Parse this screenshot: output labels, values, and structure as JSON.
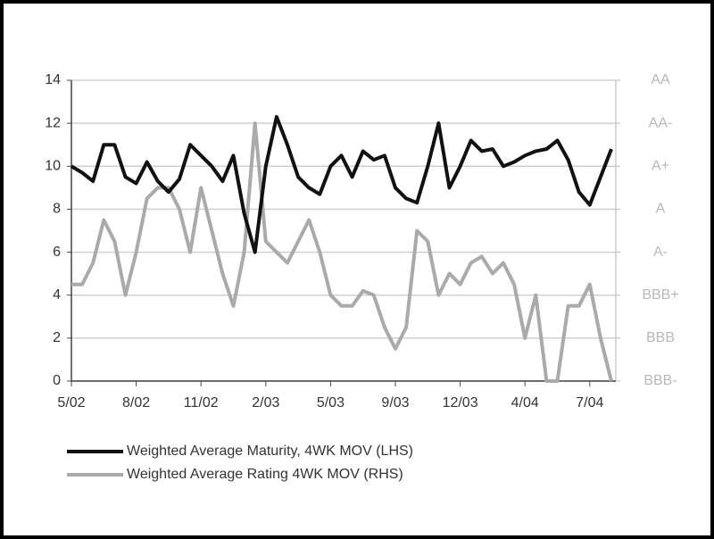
{
  "chart_data": {
    "type": "line",
    "categories": [
      "5/02",
      null,
      null,
      null,
      null,
      null,
      "8/02",
      null,
      null,
      null,
      null,
      null,
      "11/02",
      null,
      null,
      null,
      null,
      null,
      "2/03",
      null,
      null,
      null,
      null,
      null,
      "5/03",
      null,
      null,
      null,
      null,
      null,
      "9/03",
      null,
      null,
      null,
      null,
      null,
      "12/03",
      null,
      null,
      null,
      null,
      null,
      "4/04",
      null,
      null,
      null,
      null,
      null,
      "7/04",
      null,
      null
    ],
    "ylim": [
      0,
      14
    ],
    "yticks": [
      0,
      2,
      4,
      6,
      8,
      10,
      12,
      14
    ],
    "y2lim": [
      0,
      7
    ],
    "y2ticks": [
      {
        "value": 0,
        "label": "BBB-"
      },
      {
        "value": 1,
        "label": "BBB"
      },
      {
        "value": 2,
        "label": "BBB+"
      },
      {
        "value": 3,
        "label": "A-"
      },
      {
        "value": 4,
        "label": "A"
      },
      {
        "value": 5,
        "label": "A+"
      },
      {
        "value": 6,
        "label": "AA-"
      },
      {
        "value": 7,
        "label": "AA"
      }
    ],
    "grid": true,
    "legend": "bottom",
    "series": [
      {
        "name": "Weighted Average Maturity, 4WK MOV (LHS)",
        "color": "#111111",
        "values": [
          10,
          9.7,
          9.3,
          11,
          11,
          9.5,
          9.2,
          10.2,
          9.3,
          8.8,
          9.4,
          11,
          10.5,
          10,
          9.3,
          10.5,
          7.8,
          6,
          10,
          12.3,
          11,
          9.5,
          9,
          8.7,
          10,
          10.5,
          9.5,
          10.7,
          10.3,
          10.5,
          9,
          8.5,
          8.3,
          10,
          12,
          9,
          10,
          11.2,
          10.7,
          10.8,
          10,
          10.2,
          10.5,
          10.7,
          10.8,
          11.2,
          10.3,
          8.8,
          8.2,
          9.5,
          10.8
        ]
      },
      {
        "name": "Weighted Average Rating 4WK MOV (RHS)",
        "color": "#aaaaaa",
        "axis": "y2",
        "values": [
          2.25,
          2.25,
          2.75,
          3.75,
          3.25,
          2,
          3,
          4.25,
          4.5,
          4.5,
          4,
          3,
          4.5,
          3.5,
          2.5,
          1.75,
          3,
          6,
          3.25,
          3,
          2.75,
          3.25,
          3.75,
          3,
          2,
          1.75,
          1.75,
          2.1,
          2,
          1.25,
          0.75,
          1.25,
          3.5,
          3.25,
          2,
          2.5,
          2.25,
          2.75,
          2.9,
          2.5,
          2.75,
          2.25,
          1,
          2,
          0,
          0,
          1.75,
          1.75,
          2.25,
          1,
          0
        ]
      }
    ]
  }
}
